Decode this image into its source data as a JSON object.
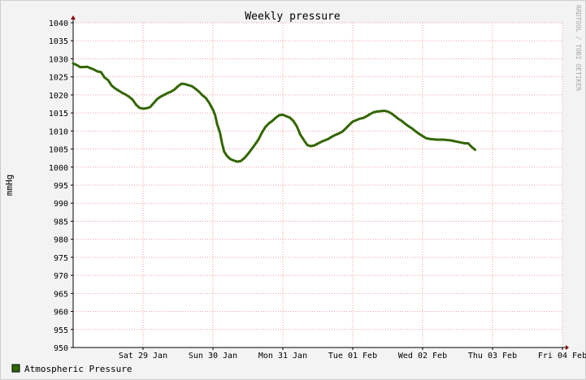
{
  "chart_data": {
    "type": "line",
    "title": "Weekly pressure",
    "ylabel": "mmHg",
    "watermark": "RRDTOOL / TOBI OETIKER",
    "ylim": [
      950,
      1040
    ],
    "yticks": [
      950,
      955,
      960,
      965,
      970,
      975,
      980,
      985,
      990,
      995,
      1000,
      1005,
      1010,
      1015,
      1020,
      1025,
      1030,
      1035,
      1040
    ],
    "xlim": [
      0,
      7
    ],
    "x_unit": "days",
    "xtick_labels": [
      {
        "x": 1,
        "label": "Sat 29 Jan"
      },
      {
        "x": 2,
        "label": "Sun 30 Jan"
      },
      {
        "x": 3,
        "label": "Mon 31 Jan"
      },
      {
        "x": 4,
        "label": "Tue 01 Feb"
      },
      {
        "x": 5,
        "label": "Wed 02 Feb"
      },
      {
        "x": 6,
        "label": "Thu 03 Feb"
      },
      {
        "x": 7,
        "label": "Fri 04 Feb"
      }
    ],
    "grid": true,
    "legend": "bottom-left",
    "series": [
      {
        "name": "Atmospheric Pressure",
        "color": "#336600",
        "points": [
          [
            0.0,
            1028.7
          ],
          [
            0.05,
            1028.3
          ],
          [
            0.1,
            1027.7
          ],
          [
            0.15,
            1027.7
          ],
          [
            0.2,
            1027.8
          ],
          [
            0.25,
            1027.4
          ],
          [
            0.3,
            1027.0
          ],
          [
            0.35,
            1026.5
          ],
          [
            0.4,
            1026.3
          ],
          [
            0.45,
            1024.8
          ],
          [
            0.5,
            1024.1
          ],
          [
            0.55,
            1022.6
          ],
          [
            0.6,
            1021.8
          ],
          [
            0.65,
            1021.2
          ],
          [
            0.7,
            1020.6
          ],
          [
            0.75,
            1020.1
          ],
          [
            0.8,
            1019.5
          ],
          [
            0.85,
            1018.7
          ],
          [
            0.9,
            1017.3
          ],
          [
            0.95,
            1016.4
          ],
          [
            1.0,
            1016.2
          ],
          [
            1.05,
            1016.3
          ],
          [
            1.1,
            1016.6
          ],
          [
            1.15,
            1017.7
          ],
          [
            1.2,
            1018.8
          ],
          [
            1.25,
            1019.5
          ],
          [
            1.3,
            1020.0
          ],
          [
            1.35,
            1020.5
          ],
          [
            1.4,
            1020.9
          ],
          [
            1.45,
            1021.5
          ],
          [
            1.5,
            1022.4
          ],
          [
            1.55,
            1023.1
          ],
          [
            1.6,
            1023.0
          ],
          [
            1.65,
            1022.7
          ],
          [
            1.7,
            1022.4
          ],
          [
            1.75,
            1021.7
          ],
          [
            1.8,
            1020.9
          ],
          [
            1.85,
            1019.9
          ],
          [
            1.9,
            1019.1
          ],
          [
            1.95,
            1017.7
          ],
          [
            2.0,
            1015.9
          ],
          [
            2.03,
            1014.5
          ],
          [
            2.06,
            1011.9
          ],
          [
            2.1,
            1009.6
          ],
          [
            2.13,
            1006.6
          ],
          [
            2.16,
            1004.3
          ],
          [
            2.2,
            1003.1
          ],
          [
            2.25,
            1002.2
          ],
          [
            2.3,
            1001.8
          ],
          [
            2.35,
            1001.5
          ],
          [
            2.4,
            1001.7
          ],
          [
            2.45,
            1002.5
          ],
          [
            2.5,
            1003.6
          ],
          [
            2.55,
            1004.9
          ],
          [
            2.6,
            1006.2
          ],
          [
            2.65,
            1007.6
          ],
          [
            2.7,
            1009.5
          ],
          [
            2.75,
            1011.1
          ],
          [
            2.8,
            1012.1
          ],
          [
            2.85,
            1012.8
          ],
          [
            2.9,
            1013.7
          ],
          [
            2.95,
            1014.4
          ],
          [
            3.0,
            1014.5
          ],
          [
            3.05,
            1014.1
          ],
          [
            3.1,
            1013.7
          ],
          [
            3.15,
            1012.8
          ],
          [
            3.2,
            1011.3
          ],
          [
            3.25,
            1009.0
          ],
          [
            3.3,
            1007.5
          ],
          [
            3.35,
            1006.1
          ],
          [
            3.4,
            1005.8
          ],
          [
            3.45,
            1006.0
          ],
          [
            3.5,
            1006.5
          ],
          [
            3.55,
            1007.0
          ],
          [
            3.6,
            1007.4
          ],
          [
            3.65,
            1007.8
          ],
          [
            3.7,
            1008.4
          ],
          [
            3.75,
            1008.9
          ],
          [
            3.8,
            1009.3
          ],
          [
            3.85,
            1009.8
          ],
          [
            3.9,
            1010.7
          ],
          [
            3.95,
            1011.7
          ],
          [
            4.0,
            1012.6
          ],
          [
            4.05,
            1013.0
          ],
          [
            4.1,
            1013.4
          ],
          [
            4.15,
            1013.6
          ],
          [
            4.2,
            1014.1
          ],
          [
            4.25,
            1014.7
          ],
          [
            4.3,
            1015.2
          ],
          [
            4.35,
            1015.4
          ],
          [
            4.4,
            1015.5
          ],
          [
            4.45,
            1015.6
          ],
          [
            4.5,
            1015.4
          ],
          [
            4.55,
            1014.9
          ],
          [
            4.6,
            1014.2
          ],
          [
            4.65,
            1013.4
          ],
          [
            4.7,
            1012.8
          ],
          [
            4.75,
            1012.0
          ],
          [
            4.8,
            1011.3
          ],
          [
            4.85,
            1010.7
          ],
          [
            4.9,
            1009.9
          ],
          [
            4.95,
            1009.2
          ],
          [
            5.0,
            1008.6
          ],
          [
            5.05,
            1008.0
          ],
          [
            5.1,
            1007.8
          ],
          [
            5.15,
            1007.7
          ],
          [
            5.2,
            1007.6
          ],
          [
            5.25,
            1007.6
          ],
          [
            5.3,
            1007.6
          ],
          [
            5.35,
            1007.5
          ],
          [
            5.4,
            1007.4
          ],
          [
            5.45,
            1007.2
          ],
          [
            5.5,
            1007.0
          ],
          [
            5.55,
            1006.8
          ],
          [
            5.6,
            1006.6
          ],
          [
            5.65,
            1006.6
          ],
          [
            5.7,
            1005.6
          ],
          [
            5.75,
            1004.8
          ]
        ]
      }
    ]
  }
}
